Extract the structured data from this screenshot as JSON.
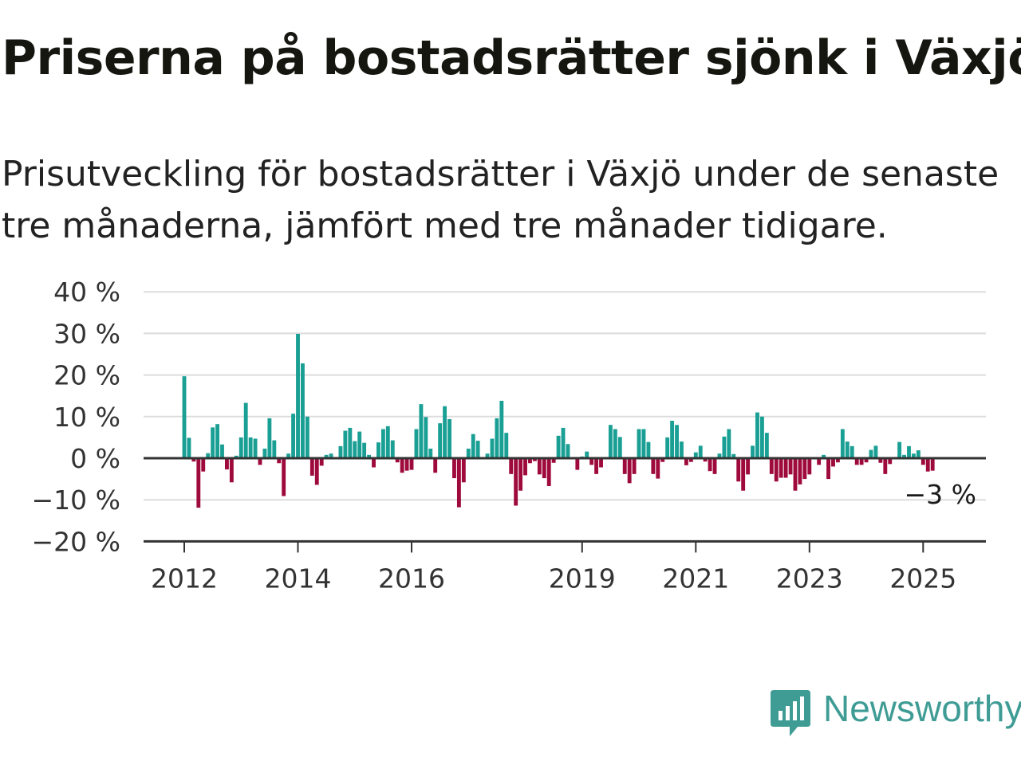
{
  "title": "Priserna på bostadsrätter sjönk i Växjö",
  "subtitle": "Prisutveckling för bostadsrätter i Växjö under de senaste tre månaderna, jämfört med tre månader tidigare.",
  "brand": {
    "name": "Newsworthy",
    "color": "#3f9c95",
    "icon": "newsworthy-logo-icon"
  },
  "chart_data": {
    "type": "bar",
    "x_start": "2012-01",
    "x_end": "2025-06",
    "x_ticks": [
      {
        "label": "2012",
        "at": "2012-01"
      },
      {
        "label": "2014",
        "at": "2014-01"
      },
      {
        "label": "2016",
        "at": "2016-01"
      },
      {
        "label": "2019",
        "at": "2019-01"
      },
      {
        "label": "2021",
        "at": "2021-01"
      },
      {
        "label": "2023",
        "at": "2023-01"
      },
      {
        "label": "2025",
        "at": "2025-01"
      }
    ],
    "ylim": [
      -20,
      40
    ],
    "y_ticks": [
      {
        "value": 40,
        "label": "40 %"
      },
      {
        "value": 30,
        "label": "30 %"
      },
      {
        "value": 20,
        "label": "20 %"
      },
      {
        "value": 10,
        "label": "10 %"
      },
      {
        "value": 0,
        "label": "0 %"
      },
      {
        "value": -10,
        "label": "−10 %"
      },
      {
        "value": -20,
        "label": "−20 %"
      }
    ],
    "grid": true,
    "colors": {
      "positive": "#1a9f94",
      "negative": "#9e0a3c",
      "grid": "#dddddd",
      "axis": "#333333"
    },
    "end_label": "−3 %",
    "values": [
      19.7,
      4.9,
      -0.8,
      -11.9,
      -3.2,
      1.2,
      7.4,
      8.2,
      3.3,
      -2.7,
      -5.8,
      0.6,
      5.0,
      13.3,
      5.0,
      4.7,
      -1.6,
      2.3,
      9.6,
      4.3,
      -1.2,
      -9.1,
      1.1,
      10.7,
      29.9,
      22.8,
      10.0,
      -4.2,
      -6.4,
      -1.8,
      0.8,
      1.1,
      0.0,
      2.9,
      6.6,
      7.3,
      4.1,
      6.4,
      3.7,
      0.8,
      -2.2,
      3.8,
      7.0,
      7.7,
      4.3,
      -1.0,
      -3.5,
      -3.0,
      -2.8,
      7.0,
      13.0,
      9.9,
      2.3,
      -3.5,
      8.4,
      12.5,
      9.4,
      -4.8,
      -11.8,
      -5.8,
      2.3,
      5.8,
      4.2,
      0.0,
      1.1,
      4.7,
      9.6,
      13.8,
      6.1,
      -3.8,
      -11.4,
      -7.8,
      -4.1,
      -1.2,
      -0.7,
      -3.9,
      -4.8,
      -6.7,
      -1.1,
      5.4,
      7.3,
      3.4,
      0.0,
      -2.8,
      0.4,
      1.6,
      -1.6,
      -3.8,
      -2.2,
      0.0,
      8.0,
      7.0,
      5.1,
      -3.8,
      -6.0,
      -3.8,
      7.0,
      7.0,
      3.9,
      -3.8,
      -4.9,
      -0.9,
      5.0,
      9.0,
      8.0,
      4.0,
      -1.7,
      -0.9,
      1.4,
      3.0,
      -0.8,
      -3.1,
      -3.8,
      1.1,
      5.2,
      7.0,
      1.0,
      -5.6,
      -7.8,
      -3.9,
      3.0,
      11.0,
      10.0,
      6.1,
      -3.8,
      -5.6,
      -4.7,
      -4.7,
      -3.9,
      -7.8,
      -6.3,
      -5.0,
      -3.9,
      0.0,
      -1.6,
      0.8,
      -5.0,
      -2.0,
      -1.0,
      7.0,
      4.0,
      2.9,
      -1.6,
      -1.6,
      -1.0,
      2.0,
      3.0,
      -1.1,
      -3.8,
      -1.4,
      0.0,
      3.9,
      0.8,
      2.9,
      1.1,
      1.9,
      -1.6,
      -3.2,
      -3.0
    ]
  }
}
